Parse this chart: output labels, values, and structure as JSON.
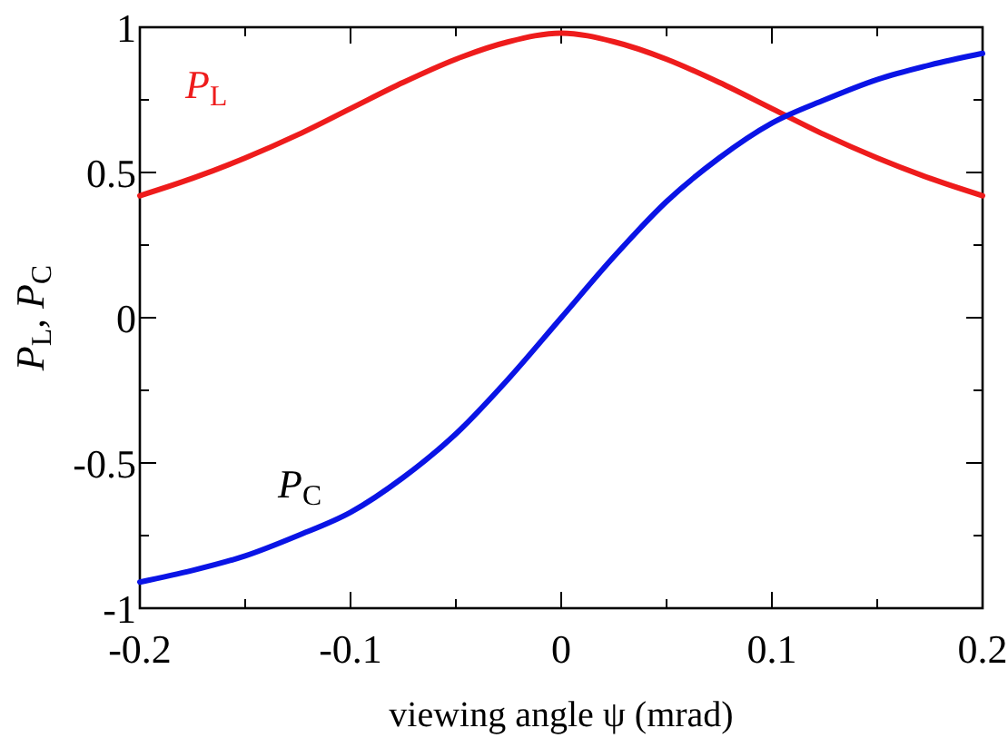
{
  "chart_data": {
    "type": "line",
    "xlabel": "viewing angle ψ (mrad)",
    "ylabel": "P$_{L}$, P$_{C}$",
    "x": [
      -0.2,
      -0.175,
      -0.15,
      -0.125,
      -0.1,
      -0.075,
      -0.05,
      -0.025,
      0,
      0.025,
      0.05,
      0.075,
      0.1,
      0.125,
      0.15,
      0.175,
      0.2
    ],
    "series": [
      {
        "name": "P$_{L}$",
        "color": "#ee1c1c",
        "values": [
          0.42,
          0.48,
          0.55,
          0.63,
          0.72,
          0.81,
          0.89,
          0.95,
          0.98,
          0.95,
          0.89,
          0.81,
          0.72,
          0.63,
          0.55,
          0.48,
          0.42
        ]
      },
      {
        "name": "P$_{C}$",
        "color": "#0a14e6",
        "values": [
          -0.91,
          -0.87,
          -0.82,
          -0.75,
          -0.67,
          -0.55,
          -0.4,
          -0.21,
          0,
          0.21,
          0.4,
          0.55,
          0.67,
          0.75,
          0.82,
          0.87,
          0.91
        ]
      }
    ],
    "xlim": [
      -0.2,
      0.2
    ],
    "ylim": [
      -1,
      1
    ],
    "xticks": [
      -0.2,
      {
        "value": -0.15,
        "label": null
      },
      -0.1,
      {
        "value": -0.05,
        "label": null
      },
      0,
      {
        "value": 0.05,
        "label": null
      },
      0.1,
      {
        "value": 0.15,
        "label": null
      },
      0.2
    ],
    "yticks": [
      -1,
      {
        "value": -0.75,
        "label": null
      },
      -0.5,
      {
        "value": -0.25,
        "label": null
      },
      0,
      {
        "value": 0.25,
        "label": null
      },
      0.5,
      {
        "value": 0.75,
        "label": null
      },
      1
    ],
    "grid": false,
    "legend": false,
    "marker": "none",
    "line_style": "solid"
  }
}
